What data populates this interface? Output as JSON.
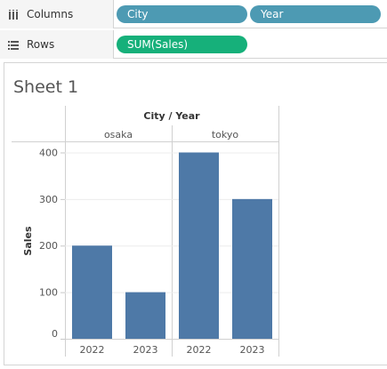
{
  "shelves": {
    "columns": {
      "label": "Columns",
      "icon": "columns-icon",
      "pills": [
        {
          "label": "City",
          "kind": "dimension"
        },
        {
          "label": "Year",
          "kind": "dimension"
        }
      ]
    },
    "rows": {
      "label": "Rows",
      "icon": "rows-icon",
      "pills": [
        {
          "label": "SUM(Sales)",
          "kind": "measure"
        }
      ]
    }
  },
  "colors": {
    "dimension_pill": "#4d9ab3",
    "measure_pill": "#16b07a",
    "bar": "#4e79a7"
  },
  "sheet": {
    "title": "Sheet 1"
  },
  "chart_data": {
    "type": "bar",
    "header_title": "City / Year",
    "groups": [
      {
        "name": "osaka",
        "categories": [
          "2022",
          "2023"
        ],
        "values": [
          200,
          100
        ]
      },
      {
        "name": "tokyo",
        "categories": [
          "2022",
          "2023"
        ],
        "values": [
          400,
          300
        ]
      }
    ],
    "ylabel": "Sales",
    "yticks": [
      0,
      100,
      200,
      300,
      400
    ],
    "ylim": [
      0,
      420
    ],
    "grid": true,
    "legend": "none"
  }
}
